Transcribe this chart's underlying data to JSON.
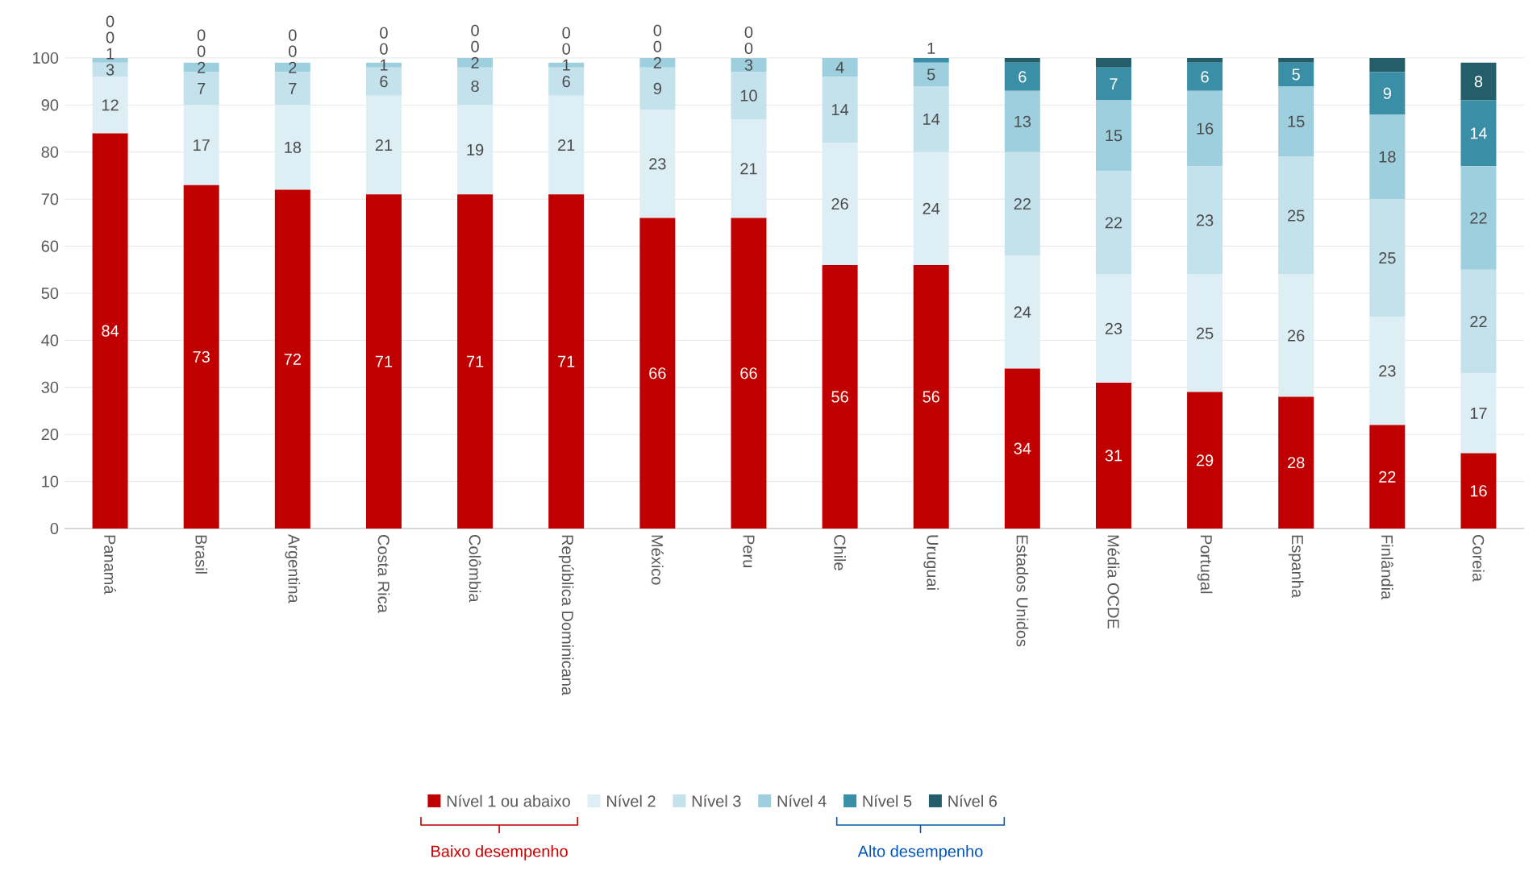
{
  "chart_data": {
    "type": "bar",
    "stacked": true,
    "categories": [
      "Panamá",
      "Brasil",
      "Argentina",
      "Costa Rica",
      "Colômbia",
      "República Dominicana",
      "México",
      "Peru",
      "Chile",
      "Uruguai",
      "Estados Unidos",
      "Média OCDE",
      "Portugal",
      "Espanha",
      "Finlândia",
      "Coreia"
    ],
    "series": [
      {
        "name": "Nível 1 ou abaixo",
        "color": "#c00000",
        "values": [
          84,
          73,
          72,
          71,
          71,
          71,
          66,
          66,
          56,
          56,
          34,
          31,
          29,
          28,
          22,
          16
        ],
        "value_labels": [
          "84",
          "73",
          "72",
          "71",
          "71",
          "71",
          "66",
          "66",
          "56",
          "56",
          "34",
          "31",
          "29",
          "28",
          "22",
          "16"
        ]
      },
      {
        "name": "Nível 2",
        "color": "#ddeef4",
        "values": [
          12,
          17,
          18,
          21,
          19,
          21,
          23,
          21,
          26,
          24,
          24,
          23,
          25,
          26,
          23,
          17
        ],
        "value_labels": [
          "12",
          "17",
          "18",
          "21",
          "19",
          "21",
          "23",
          "21",
          "26",
          "24",
          "24",
          "23",
          "25",
          "26",
          "23",
          "17"
        ]
      },
      {
        "name": "Nível 3",
        "color": "#c3e2ec",
        "values": [
          3,
          7,
          7,
          6,
          8,
          6,
          9,
          10,
          14,
          14,
          22,
          22,
          23,
          25,
          25,
          22
        ],
        "value_labels": [
          "3",
          "7",
          "7",
          "6",
          "8",
          "6",
          "9",
          "10",
          "14",
          "14",
          "22",
          "22",
          "23",
          "25",
          "25",
          "22"
        ]
      },
      {
        "name": "Nível 4",
        "color": "#9dcfdf",
        "values": [
          1,
          2,
          2,
          1,
          2,
          1,
          2,
          3,
          4,
          5,
          13,
          15,
          16,
          15,
          18,
          22
        ],
        "value_labels": [
          "1",
          "2",
          "2",
          "1",
          "2",
          "1",
          "2",
          "3",
          "4",
          "5",
          "13",
          "15",
          "16",
          "15",
          "18",
          "22"
        ]
      },
      {
        "name": "Nível 5",
        "color": "#3a8ea6",
        "values": [
          0,
          0,
          0,
          0,
          0,
          0,
          0,
          0,
          0,
          1,
          6,
          7,
          6,
          5,
          9,
          14
        ],
        "value_labels": [
          "0",
          "0",
          "0",
          "0",
          "0",
          "0",
          "0",
          "0",
          null,
          "1",
          "6",
          "7",
          "6",
          "5",
          "9",
          "14"
        ]
      },
      {
        "name": "Nível 6",
        "color": "#245e6b",
        "values": [
          0,
          0,
          0,
          0,
          0,
          0,
          0,
          0,
          0,
          0,
          1,
          2,
          1,
          1,
          3,
          8
        ],
        "value_labels": [
          "0",
          "0",
          "0",
          "0",
          "0",
          "0",
          "0",
          "0",
          null,
          null,
          null,
          null,
          null,
          null,
          null,
          "8"
        ]
      }
    ],
    "ylim": [
      0,
      100
    ],
    "yticks": [
      0,
      10,
      20,
      30,
      40,
      50,
      60,
      70,
      80,
      90,
      100
    ],
    "grid": "y",
    "legend": "bottom",
    "annotations": [
      "Baixo desempenho",
      "Alto desempenho"
    ]
  }
}
